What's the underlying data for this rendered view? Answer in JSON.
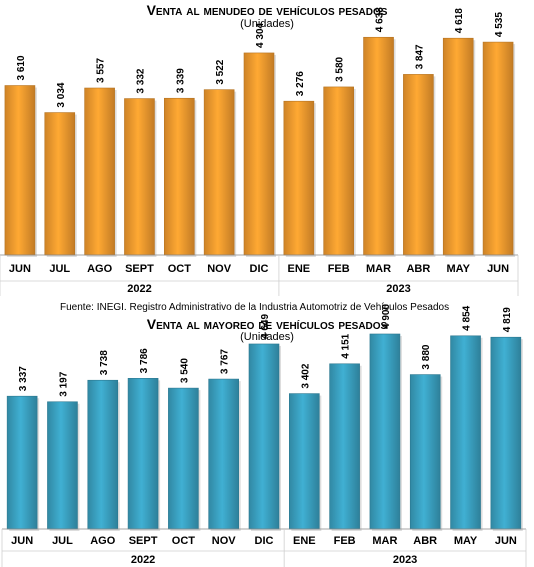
{
  "chart_data": [
    {
      "type": "bar",
      "title": "Venta al menudeo de vehículos pesados",
      "subtitle": "(Unidades)",
      "categories": [
        "JUN",
        "JUL",
        "AGO",
        "SEPT",
        "OCT",
        "NOV",
        "DIC",
        "ENE",
        "FEB",
        "MAR",
        "ABR",
        "MAY",
        "JUN"
      ],
      "year_groups": [
        {
          "label": "2022",
          "from": 0,
          "to": 6
        },
        {
          "label": "2023",
          "from": 7,
          "to": 12
        }
      ],
      "values": [
        3610,
        3034,
        3557,
        3332,
        3339,
        3522,
        4304,
        3276,
        3580,
        4638,
        3847,
        4618,
        4535
      ],
      "value_labels": [
        "3 610",
        "3 034",
        "3 557",
        "3 332",
        "3 339",
        "3 522",
        "4 304",
        "3 276",
        "3 580",
        "4 638",
        "3 847",
        "4 618",
        "4 535"
      ],
      "bar_color": "#f29a2e",
      "ylim": [
        0,
        4750
      ],
      "grid": false,
      "legend": "none"
    },
    {
      "type": "bar",
      "title": "Venta al mayoreo de vehículos pesados",
      "subtitle": "(Unidades)",
      "categories": [
        "JUN",
        "JUL",
        "AGO",
        "SEPT",
        "OCT",
        "NOV",
        "DIC",
        "ENE",
        "FEB",
        "MAR",
        "ABR",
        "MAY",
        "JUN"
      ],
      "year_groups": [
        {
          "label": "2022",
          "from": 0,
          "to": 6
        },
        {
          "label": "2023",
          "from": 7,
          "to": 12
        }
      ],
      "values": [
        3337,
        3197,
        3738,
        3786,
        3540,
        3767,
        4649,
        3402,
        4151,
        4900,
        3880,
        4854,
        4819
      ],
      "value_labels": [
        "3 337",
        "3 197",
        "3 738",
        "3 786",
        "3 540",
        "3 767",
        "4 649",
        "3 402",
        "4 151",
        "4 900",
        "3 880",
        "4 854",
        "4 819"
      ],
      "bar_color": "#3aa0c0",
      "ylim": [
        0,
        5000
      ],
      "grid": false,
      "legend": "none"
    }
  ],
  "footer": {
    "source": "Fuente: INEGI. Registro Administrativo de la Industria Automotriz de Vehículos Pesados"
  }
}
